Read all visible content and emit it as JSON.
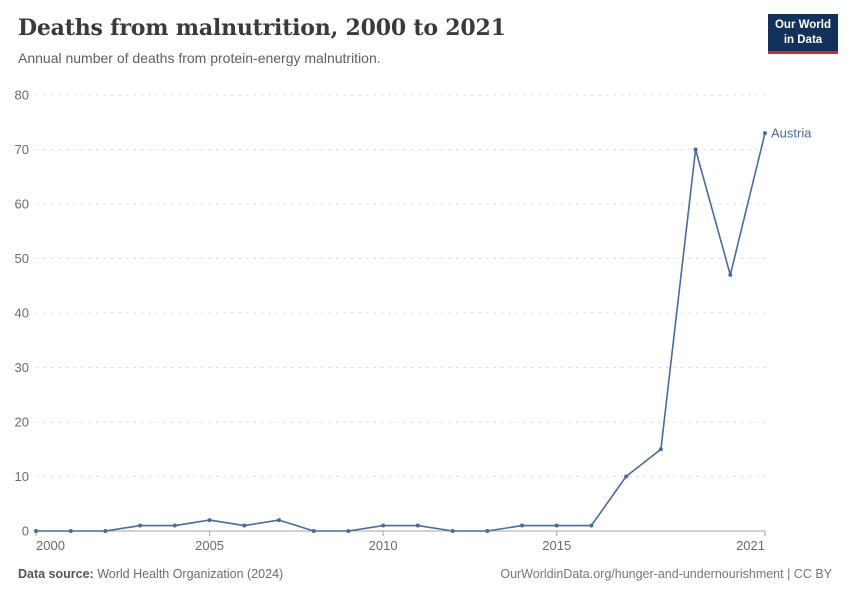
{
  "header": {
    "title": "Deaths from malnutrition, 2000 to 2021",
    "subtitle": "Annual number of deaths from protein-energy malnutrition.",
    "logo": {
      "line1": "Our World",
      "line2": "in Data",
      "bg": "#12325c",
      "accent": "#bf3528"
    }
  },
  "chart_data": {
    "type": "line",
    "title": "Deaths from malnutrition, 2000 to 2021",
    "xlabel": "",
    "ylabel": "",
    "xlim": [
      2000,
      2021
    ],
    "ylim": [
      0,
      80
    ],
    "x_ticks": [
      2000,
      2005,
      2010,
      2015,
      2021
    ],
    "y_ticks": [
      0,
      10,
      20,
      30,
      40,
      50,
      60,
      70,
      80
    ],
    "grid": "horizontal-dashed",
    "legend_position": "end-of-line",
    "series": [
      {
        "name": "Austria",
        "color": "#4C6A9C",
        "x": [
          2000,
          2001,
          2002,
          2003,
          2004,
          2005,
          2006,
          2007,
          2008,
          2009,
          2010,
          2011,
          2012,
          2013,
          2014,
          2015,
          2016,
          2017,
          2018,
          2019,
          2020,
          2021
        ],
        "values": [
          0,
          0,
          0,
          1,
          1,
          2,
          1,
          2,
          0,
          0,
          1,
          1,
          0,
          0,
          1,
          1,
          1,
          10,
          15,
          70,
          47,
          73
        ]
      }
    ]
  },
  "footer": {
    "source_label": "Data source:",
    "source_text": "World Health Organization (2024)",
    "credit": "OurWorldinData.org/hunger-and-undernourishment | CC BY"
  },
  "colors": {
    "line": "#4C6A9C",
    "gridline": "#dcdcdc",
    "axis": "#a5a5a5",
    "tick_text": "#6b6b6b",
    "title_text": "#3a3a3a"
  }
}
